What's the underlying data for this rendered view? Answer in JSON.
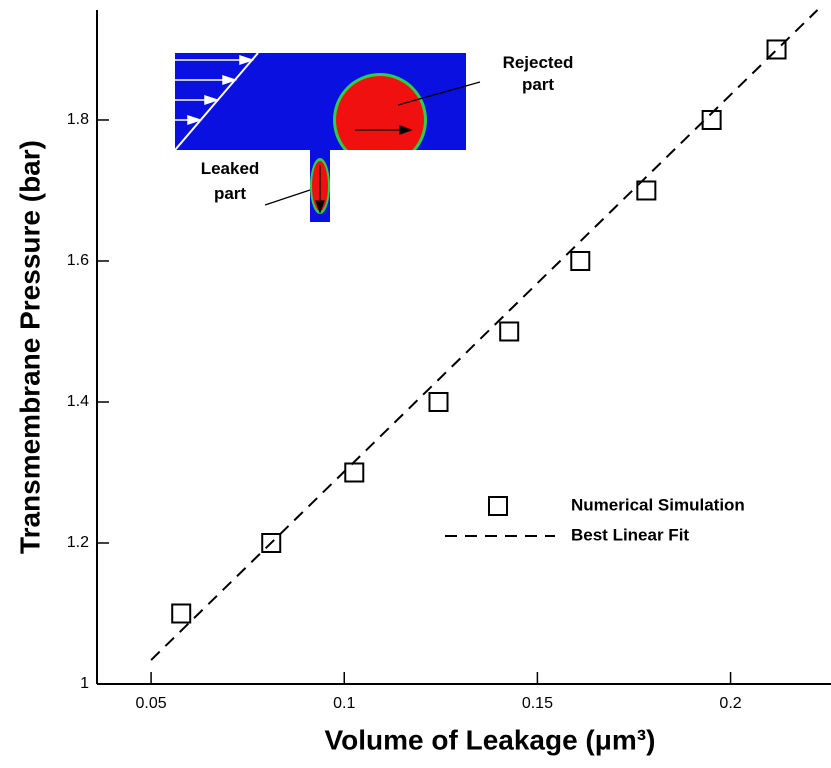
{
  "chart_data": {
    "type": "scatter",
    "x_label": "Volume of Leakage (μm³)",
    "y_label": "Transmembrane Pressure (bar)",
    "xlim": [
      0.036,
      0.226
    ],
    "ylim": [
      1,
      1.956
    ],
    "xticks": [
      0.05,
      0.1,
      0.15,
      0.2
    ],
    "yticks": [
      1,
      1.2,
      1.4,
      1.6,
      1.8
    ],
    "legend": "right",
    "series": [
      {
        "name": "Numerical Simulation",
        "type": "scatter",
        "color": "#000000",
        "x": [
          0.0578,
          0.0811,
          0.1026,
          0.1244,
          0.1427,
          0.1611,
          0.1782,
          0.1951,
          0.2119
        ],
        "values": [
          1.1,
          1.2,
          1.3,
          1.4,
          1.5,
          1.6,
          1.7,
          1.8,
          1.9
        ]
      },
      {
        "name": "Best Linear Fit",
        "type": "line",
        "color": "#000000",
        "x": [
          0.05,
          0.2225
        ],
        "values": [
          1.034,
          1.956
        ]
      }
    ],
    "annotations": [
      {
        "lines": [
          "Rejected",
          "part"
        ]
      },
      {
        "lines": [
          "Leaked",
          "part"
        ]
      }
    ]
  }
}
